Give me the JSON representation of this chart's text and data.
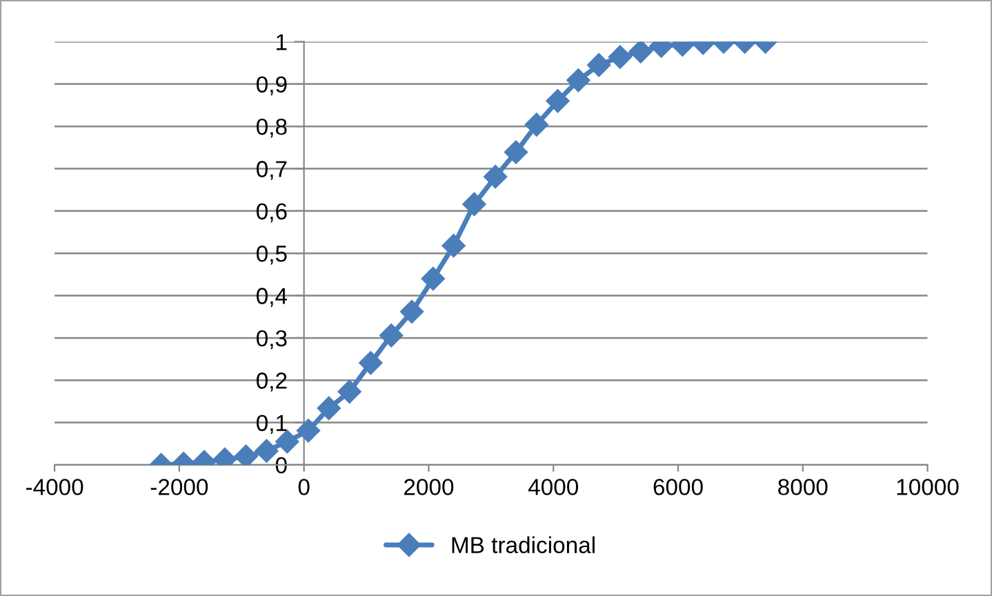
{
  "chart_data": {
    "type": "line",
    "x": [
      -2290,
      -1930,
      -1600,
      -1270,
      -930,
      -600,
      -270,
      70,
      400,
      730,
      1070,
      1400,
      1730,
      2070,
      2400,
      2730,
      3070,
      3400,
      3730,
      4070,
      4400,
      4730,
      5070,
      5400,
      5730,
      6070,
      6400,
      6730,
      7070,
      7400
    ],
    "series": [
      {
        "name": "MB tradicional",
        "color": "#4a7ebb",
        "values": [
          0,
          0.003,
          0.007,
          0.013,
          0.02,
          0.033,
          0.055,
          0.081,
          0.134,
          0.173,
          0.241,
          0.306,
          0.362,
          0.44,
          0.518,
          0.616,
          0.681,
          0.739,
          0.804,
          0.86,
          0.909,
          0.945,
          0.964,
          0.977,
          0.99,
          0.993,
          0.997,
          1,
          1,
          1
        ]
      }
    ],
    "xlim": [
      -4000,
      10000
    ],
    "xticks": [
      -4000,
      -2000,
      0,
      2000,
      4000,
      6000,
      8000,
      10000
    ],
    "ylim": [
      0,
      1
    ],
    "yticks": [
      0,
      {
        "value": 0.1,
        "label": "0,1"
      },
      {
        "value": 0.2,
        "label": "0,2"
      },
      {
        "value": 0.3,
        "label": "0,3"
      },
      {
        "value": 0.4,
        "label": "0,4"
      },
      {
        "value": 0.5,
        "label": "0,5"
      },
      {
        "value": 0.6,
        "label": "0,6"
      },
      {
        "value": 0.7,
        "label": "0,7"
      },
      {
        "value": 0.8,
        "label": "0,8"
      },
      {
        "value": 0.9,
        "label": "0,9"
      },
      1
    ],
    "grid": "y",
    "legend": "bottom",
    "marker": "diamond",
    "line_style": "solid"
  }
}
